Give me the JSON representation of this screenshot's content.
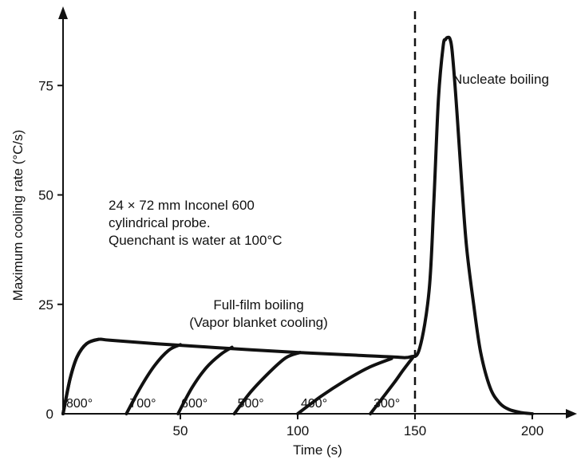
{
  "chart_data": {
    "type": "line",
    "title": "",
    "xlabel": "Time (s)",
    "ylabel": "Maximum cooling rate (°C/s)",
    "xlim": [
      0,
      225
    ],
    "ylim": [
      0,
      90
    ],
    "xticks": [
      50,
      100,
      150,
      200
    ],
    "yticks": [
      0,
      25,
      50,
      75
    ],
    "grid": false,
    "vline": {
      "x": 150,
      "style": "dashed"
    },
    "main_curve": {
      "x": [
        0,
        3,
        6,
        10,
        15,
        20,
        40,
        60,
        80,
        100,
        120,
        140,
        148,
        152,
        156,
        158,
        160,
        162,
        163,
        164,
        165,
        166,
        168,
        170,
        172,
        175,
        178,
        182,
        186,
        190,
        195,
        200
      ],
      "y": [
        0,
        8,
        13,
        16,
        17,
        16.8,
        16,
        15.3,
        14.6,
        14,
        13.5,
        13,
        13,
        15,
        28,
        48,
        72,
        84,
        85.5,
        86,
        85.5,
        82,
        68,
        52,
        38,
        25,
        14,
        6,
        2.5,
        1,
        0.3,
        0
      ]
    },
    "start_curves": [
      {
        "label": "800°",
        "x": [
          0,
          3,
          6,
          10,
          15
        ],
        "y": [
          0,
          8,
          13,
          16,
          17
        ]
      },
      {
        "label": "700°",
        "x": [
          27,
          33,
          39,
          45,
          50
        ],
        "y": [
          0,
          6,
          11,
          14.5,
          15.8
        ]
      },
      {
        "label": "600°",
        "x": [
          49,
          55,
          61,
          67,
          72
        ],
        "y": [
          0,
          6,
          10.5,
          13.5,
          15.2
        ]
      },
      {
        "label": "500°",
        "x": [
          73,
          80,
          88,
          95,
          101
        ],
        "y": [
          0,
          5,
          9.5,
          12.8,
          14
        ]
      },
      {
        "label": "400°",
        "x": [
          100,
          110,
          120,
          130,
          140
        ],
        "y": [
          0,
          4,
          7.5,
          10.5,
          12.6
        ]
      },
      {
        "label": "300°",
        "x": [
          131,
          136,
          141,
          145,
          149
        ],
        "y": [
          0,
          3.5,
          7,
          10,
          12.8
        ]
      }
    ],
    "annotations": {
      "nucleate": "Nucleate boiling",
      "full_film_1": "Full-film boiling",
      "full_film_2": "(Vapor blanket cooling)",
      "probe_1": "24 × 72 mm Inconel 600",
      "probe_2": "cylindrical probe.",
      "probe_3": "Quenchant is water at 100°C"
    }
  }
}
